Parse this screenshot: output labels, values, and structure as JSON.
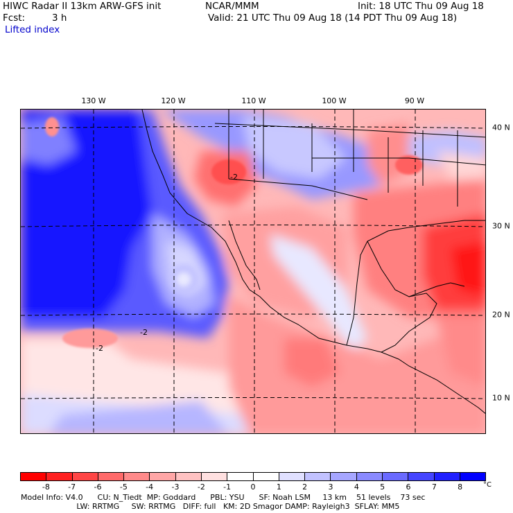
{
  "header": {
    "model": "HIWC Radar II 13km ARW-GFS init",
    "org": "NCAR/MMM",
    "init": "Init: 18 UTC Thu 09 Aug 18",
    "fcst_label": "Fcst:",
    "fcst_value": "3 h",
    "valid": "Valid: 21 UTC Thu 09 Aug 18 (14 PDT Thu 09 Aug 18)",
    "field": "Lifted index"
  },
  "map": {
    "lon_labels": [
      "130 W",
      "120 W",
      "110 W",
      "100 W",
      "90 W"
    ],
    "lat_labels": [
      "40 N",
      "30 N",
      "20 N",
      "10 N"
    ],
    "contour_labels": [
      "-2",
      "-2",
      "-2"
    ]
  },
  "colorbar": {
    "colors": [
      "#ff0000",
      "#ff2020",
      "#ff4545",
      "#ff6a6a",
      "#ff8a8a",
      "#ffa6a6",
      "#ffc2c2",
      "#ffe0e0",
      "#ffffff",
      "#ffffff",
      "#e0e0ff",
      "#c2c2ff",
      "#a6a6ff",
      "#8a8aff",
      "#6a6aff",
      "#4545ff",
      "#2020ff",
      "#0000ff"
    ],
    "labels": [
      "-8",
      "-7",
      "-6",
      "-5",
      "-4",
      "-3",
      "-2",
      "-1",
      "0",
      "1",
      "2",
      "3",
      "4",
      "5",
      "6",
      "7",
      "8"
    ],
    "unit": "°C"
  },
  "footer": {
    "line1": "Model Info: V4.0      CU: N_Tiedt  MP: Goddard      PBL: YSU      SF: Noah LSM     13 km    51 levels    73 sec",
    "line2": "                       LW: RRTMG     SW: RRTMG   DIFF: full   KM: 2D Smagor DAMP: Rayleigh3  SFLAY: MM5"
  }
}
